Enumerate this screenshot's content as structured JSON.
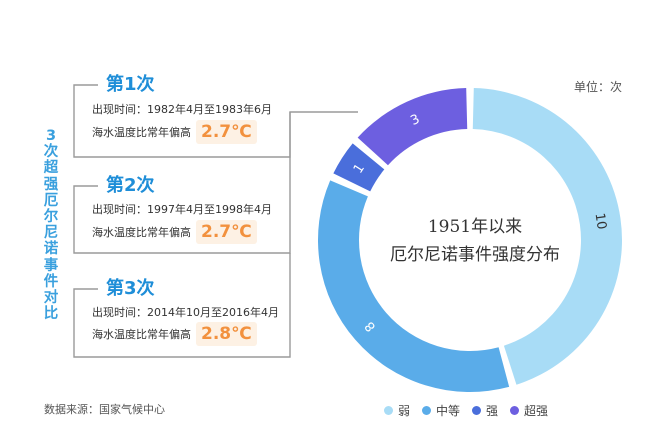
{
  "side_title": "3次超强厄尔尼诺事件对比",
  "unit_label": "单位：次",
  "source": "数据来源：国家气候中心",
  "center_text": {
    "line1": "1951年以来",
    "line2": "厄尔尼诺事件强度分布"
  },
  "events": [
    {
      "title": "第1次",
      "period": "出现时间：1982年4月至1983年6月",
      "temp_label": "海水温度比常年偏高",
      "temp_value": "2.7℃"
    },
    {
      "title": "第2次",
      "period": "出现时间：1997年4月至1998年4月",
      "temp_label": "海水温度比常年偏高",
      "temp_value": "2.7℃"
    },
    {
      "title": "第3次",
      "period": "出现时间：2014年10月至2016年4月",
      "temp_label": "海水温度比常年偏高",
      "temp_value": "2.8℃"
    }
  ],
  "chart_data": {
    "type": "pie",
    "categories": [
      "弱",
      "中等",
      "强",
      "超强"
    ],
    "values": [
      10,
      8,
      1,
      3
    ],
    "colors": [
      "#a8dcf6",
      "#5aace9",
      "#4a6edb",
      "#6d5fe0"
    ]
  }
}
